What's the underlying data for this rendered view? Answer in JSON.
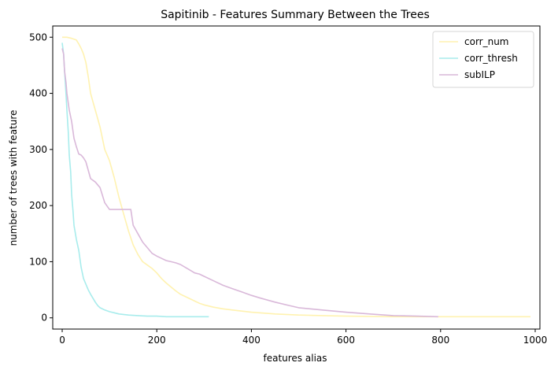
{
  "chart_data": {
    "type": "line",
    "title": "Sapitinib - Features Summary Between the Trees",
    "xlabel": "features alias",
    "ylabel": "number of trees with feature",
    "xlim": [
      -20,
      1010
    ],
    "ylim": [
      -20,
      520
    ],
    "xticks": [
      0,
      200,
      400,
      600,
      800,
      1000
    ],
    "yticks": [
      0,
      100,
      200,
      300,
      400,
      500
    ],
    "grid": false,
    "legend_position": "top-right",
    "series": [
      {
        "name": "corr_num",
        "color": "#fff2b0",
        "x": [
          0,
          10,
          20,
          30,
          35,
          40,
          45,
          50,
          55,
          60,
          65,
          70,
          80,
          90,
          100,
          110,
          120,
          130,
          140,
          150,
          160,
          170,
          180,
          190,
          200,
          210,
          220,
          230,
          240,
          250,
          260,
          270,
          280,
          290,
          300,
          320,
          340,
          360,
          380,
          400,
          450,
          500,
          550,
          600,
          700,
          800,
          900,
          990
        ],
        "y": [
          500,
          500,
          498,
          495,
          488,
          480,
          470,
          455,
          430,
          400,
          385,
          370,
          340,
          300,
          280,
          250,
          215,
          185,
          155,
          130,
          113,
          100,
          94,
          88,
          80,
          70,
          62,
          55,
          48,
          42,
          38,
          34,
          30,
          26,
          23,
          19,
          16,
          14,
          12,
          10,
          7,
          5,
          4,
          3,
          2,
          2,
          2,
          2
        ]
      },
      {
        "name": "corr_thresh",
        "color": "#a8ecec",
        "x": [
          0,
          3,
          5,
          8,
          10,
          13,
          15,
          18,
          20,
          23,
          25,
          28,
          30,
          35,
          40,
          45,
          50,
          55,
          60,
          65,
          70,
          75,
          80,
          90,
          100,
          110,
          120,
          140,
          160,
          180,
          200,
          220,
          250,
          280,
          310
        ],
        "y": [
          490,
          470,
          440,
          400,
          370,
          330,
          290,
          260,
          220,
          190,
          165,
          150,
          140,
          120,
          90,
          70,
          60,
          50,
          42,
          35,
          28,
          22,
          18,
          14,
          11,
          9,
          7,
          5,
          4,
          3,
          3,
          2,
          2,
          2,
          2
        ]
      },
      {
        "name": "subILP",
        "color": "#d9b8d9",
        "x": [
          0,
          3,
          5,
          8,
          10,
          15,
          20,
          25,
          30,
          35,
          40,
          45,
          50,
          60,
          70,
          80,
          90,
          100,
          110,
          120,
          130,
          140,
          145,
          150,
          160,
          170,
          180,
          190,
          200,
          210,
          220,
          230,
          240,
          250,
          260,
          270,
          280,
          290,
          300,
          320,
          340,
          360,
          380,
          400,
          420,
          450,
          480,
          500,
          550,
          600,
          650,
          700,
          750,
          795
        ],
        "y": [
          480,
          470,
          440,
          420,
          400,
          370,
          350,
          320,
          305,
          292,
          290,
          285,
          278,
          248,
          242,
          232,
          205,
          193,
          193,
          193,
          193,
          193,
          193,
          165,
          150,
          135,
          125,
          115,
          110,
          106,
          102,
          100,
          98,
          95,
          90,
          85,
          80,
          78,
          74,
          66,
          58,
          52,
          46,
          40,
          35,
          28,
          22,
          18,
          14,
          10,
          7,
          4,
          3,
          2
        ]
      }
    ]
  }
}
